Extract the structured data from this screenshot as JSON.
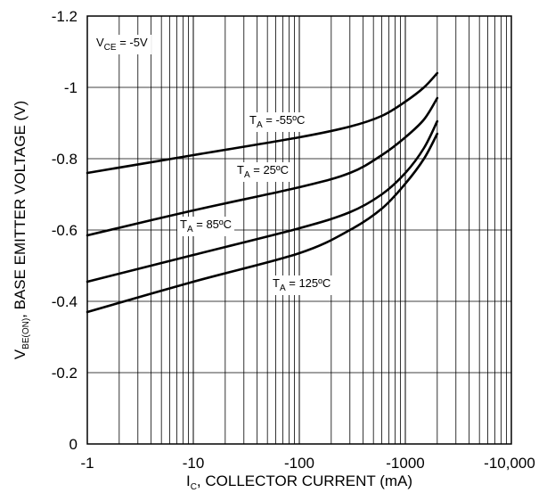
{
  "chart_data": {
    "type": "line",
    "x_scale": "log",
    "x_ticks": [
      "-1",
      "-10",
      "-100",
      "-1000",
      "-10,000"
    ],
    "y_ticks": [
      "0",
      "-0.2",
      "-0.4",
      "-0.6",
      "-0.8",
      "-1",
      "-1.2"
    ],
    "xlim": [
      -1,
      -10000
    ],
    "ylim": [
      0,
      -1.2
    ],
    "grid": true,
    "xlabel": {
      "main": "I",
      "sub": "C",
      "rest": ", COLLECTOR CURRENT (mA)"
    },
    "ylabel": {
      "main": "V",
      "sub": "BE(ON)",
      "rest": ", BASE EMITTER VOLTAGE (V)"
    },
    "condition": {
      "main": "V",
      "sub": "CE",
      "rest": " = -5V"
    },
    "series": [
      {
        "label": {
          "main": "T",
          "sub": "A",
          "rest": " = -55ºC"
        },
        "x": [
          -1,
          -10,
          -100,
          -300,
          -600,
          -1000,
          -1500,
          -2000
        ],
        "y": [
          -0.76,
          -0.81,
          -0.86,
          -0.89,
          -0.92,
          -0.96,
          -1.0,
          -1.04
        ]
      },
      {
        "label": {
          "main": "T",
          "sub": "A",
          "rest": " = 25ºC"
        },
        "x": [
          -1,
          -10,
          -100,
          -300,
          -600,
          -1000,
          -1500,
          -2000
        ],
        "y": [
          -0.585,
          -0.655,
          -0.72,
          -0.76,
          -0.81,
          -0.86,
          -0.91,
          -0.97
        ]
      },
      {
        "label": {
          "main": "T",
          "sub": "A",
          "rest": " = 85ºC"
        },
        "x": [
          -1,
          -10,
          -100,
          -300,
          -600,
          -1000,
          -1500,
          -2000
        ],
        "y": [
          -0.455,
          -0.53,
          -0.605,
          -0.65,
          -0.7,
          -0.76,
          -0.83,
          -0.905
        ]
      },
      {
        "label": {
          "main": "T",
          "sub": "A",
          "rest": " = 125ºC"
        },
        "x": [
          -1,
          -10,
          -100,
          -300,
          -600,
          -1000,
          -1500,
          -2000
        ],
        "y": [
          -0.37,
          -0.455,
          -0.535,
          -0.6,
          -0.66,
          -0.73,
          -0.8,
          -0.87
        ]
      }
    ]
  }
}
